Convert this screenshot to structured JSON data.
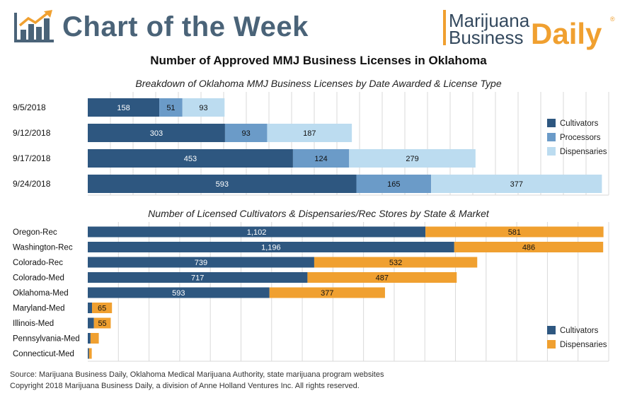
{
  "header": {
    "title": "Chart of the Week",
    "brand_line1": "Marijuana",
    "brand_line2": "Business",
    "brand_daily": "Daily",
    "brand_reg": "®"
  },
  "main_title": "Number of Approved MMJ Business Licenses in Oklahoma",
  "colors": {
    "cultivators": "#2e5780",
    "processors": "#6b9bc8",
    "dispensaries_blue": "#bcdcf0",
    "dispensaries_orange": "#f0a030",
    "grid": "#d9d9d9"
  },
  "chart_data": [
    {
      "type": "bar",
      "orientation": "horizontal",
      "stacked": true,
      "title": "Breakdown of Oklahoma MMJ Business Licenses by Date Awarded & License Type",
      "categories": [
        "9/5/2018",
        "9/12/2018",
        "9/17/2018",
        "9/24/2018"
      ],
      "series": [
        {
          "name": "Cultivators",
          "values": [
            158,
            303,
            453,
            593
          ]
        },
        {
          "name": "Processors",
          "values": [
            51,
            93,
            124,
            165
          ]
        },
        {
          "name": "Dispensaries",
          "values": [
            93,
            187,
            279,
            377
          ]
        }
      ],
      "xlim": [
        0,
        1150
      ],
      "grid": true,
      "legend": "right"
    },
    {
      "type": "bar",
      "orientation": "horizontal",
      "stacked": true,
      "title": "Number of Licensed Cultivators & Dispensaries/Rec Stores by State & Market",
      "categories": [
        "Oregon-Rec",
        "Washington-Rec",
        "Colorado-Rec",
        "Colorado-Med",
        "Oklahoma-Med",
        "Maryland-Med",
        "Illinois-Med",
        "Pennsylvania-Med",
        "Connecticut-Med"
      ],
      "series": [
        {
          "name": "Cultivators",
          "values": [
            1102,
            1196,
            739,
            717,
            593,
            14,
            20,
            9,
            4
          ],
          "labels": [
            "1,102",
            "1,196",
            "739",
            "717",
            "593",
            "",
            "",
            "",
            ""
          ]
        },
        {
          "name": "Dispensaries",
          "values": [
            581,
            486,
            532,
            487,
            377,
            65,
            55,
            27,
            9
          ],
          "labels": [
            "581",
            "486",
            "532",
            "487",
            "377",
            "65",
            "55",
            "",
            ""
          ]
        }
      ],
      "xlim": [
        0,
        1700
      ],
      "grid": true,
      "legend": "bottom-right"
    }
  ],
  "footer": {
    "source": "Source: Marijuana Business Daily, Oklahoma Medical Marijuana Authority, state marijuana program websites",
    "copyright": "Copyright 2018 Marijuana Business Daily, a division of Anne Holland Ventures Inc. All rights reserved."
  }
}
